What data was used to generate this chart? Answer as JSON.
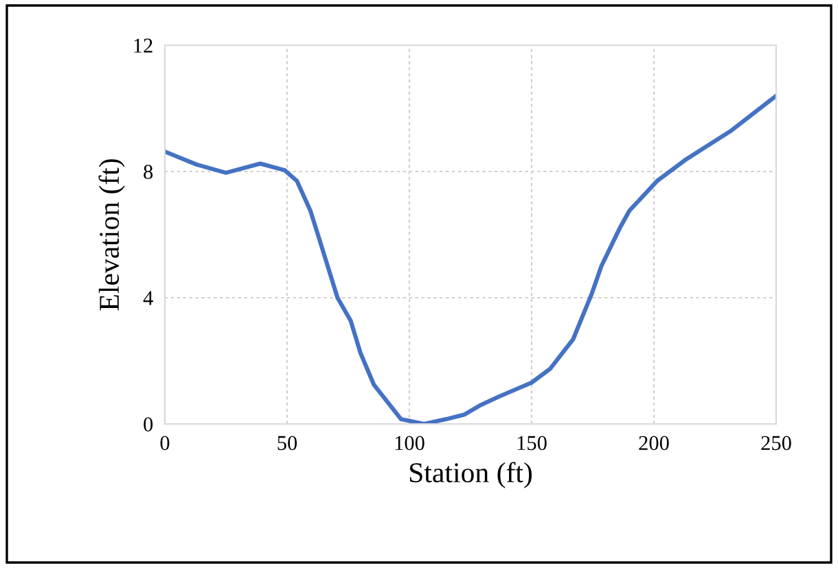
{
  "chart_data": {
    "type": "line",
    "xlabel": "Station (ft)",
    "ylabel": "Elevation (ft)",
    "xlim": [
      0,
      250
    ],
    "ylim": [
      0,
      12
    ],
    "xticks": [
      0,
      50,
      100,
      150,
      200,
      250
    ],
    "yticks": [
      0,
      4,
      8,
      12
    ],
    "grid": true,
    "legend": false,
    "series": [
      {
        "color": "#4472c4",
        "x": [
          0,
          13,
          25,
          39,
          49,
          54,
          59.5,
          63,
          70.6,
          76,
          80,
          85.5,
          96.6,
          106,
          115,
          122.6,
          128.7,
          136.7,
          150,
          157.6,
          167,
          174.7,
          178.5,
          186,
          190,
          201.3,
          212.7,
          231.7,
          250
        ],
        "values": [
          8.63,
          8.22,
          7.96,
          8.25,
          8.04,
          7.7,
          6.76,
          5.9,
          4.0,
          3.27,
          2.25,
          1.24,
          0.15,
          0,
          0.15,
          0.3,
          0.58,
          0.87,
          1.31,
          1.75,
          2.69,
          4.15,
          5.0,
          6.2,
          6.76,
          7.7,
          8.36,
          9.3,
          10.4
        ]
      }
    ]
  }
}
